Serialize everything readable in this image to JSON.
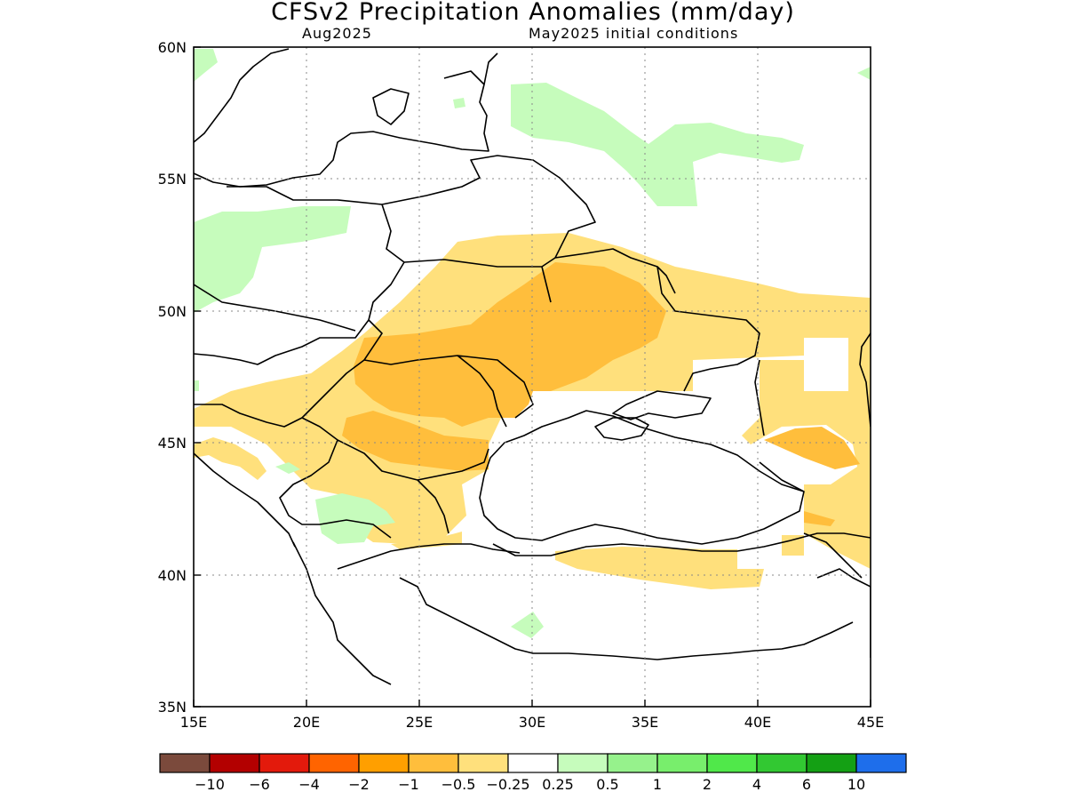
{
  "header": {
    "title": "CFSv2 Precipitation Anomalies (mm/day)",
    "month": "Aug2025",
    "initial_conditions": "May2025 initial conditions"
  },
  "map": {
    "lon_range": [
      15,
      45
    ],
    "lat_range": [
      35,
      60
    ],
    "lon_ticks": [
      "15E",
      "20E",
      "25E",
      "30E",
      "35E",
      "40E",
      "45E"
    ],
    "lat_ticks": [
      "60N",
      "55N",
      "50N",
      "45N",
      "40N",
      "35N"
    ],
    "grid": true
  },
  "legend": {
    "colors": [
      "#7b4a3c",
      "#b30000",
      "#e31a0c",
      "#ff6400",
      "#ff9f00",
      "#ffbe3c",
      "#ffe07c",
      "#ffffff",
      "#c6fcbc",
      "#96f28c",
      "#78ee6c",
      "#50e84a",
      "#32c832",
      "#14a014",
      "#1e6eeb"
    ],
    "labels": [
      "-10",
      "-6",
      "-4",
      "-2",
      "-1",
      "-0.5",
      "-0.25",
      "0.25",
      "0.5",
      "1",
      "2",
      "4",
      "6",
      "10"
    ]
  },
  "anomaly_classes": {
    "light_orange": "#ffe07c",
    "orange": "#ffbe3c",
    "light_green": "#c6fcbc"
  }
}
